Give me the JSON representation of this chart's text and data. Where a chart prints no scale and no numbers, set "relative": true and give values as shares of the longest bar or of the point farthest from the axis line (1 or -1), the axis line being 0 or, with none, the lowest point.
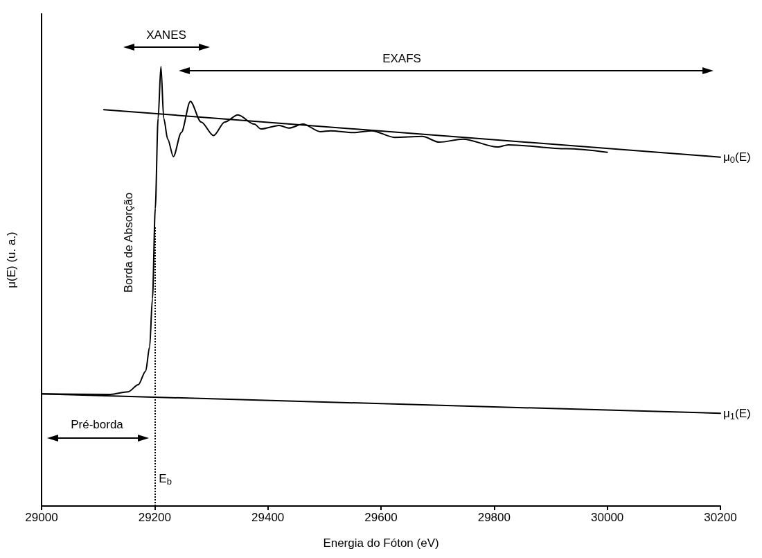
{
  "chart_data": {
    "type": "line",
    "relative": true,
    "xlabel": "Energia do Fóton (eV)",
    "ylabel": "μ(E) (u. a.)",
    "xlim": [
      29000,
      30200
    ],
    "xticks": [
      29000,
      29200,
      29400,
      29600,
      29800,
      30000,
      30200
    ],
    "grid": false,
    "legend": false,
    "marker": "none",
    "line_style": "solid",
    "series": [
      {
        "color": "#000000",
        "x": [
          29000,
          29122,
          29153,
          29171,
          29184,
          29191,
          29196,
          29201,
          29206,
          29211,
          29216,
          29223,
          29233,
          29247,
          29263,
          29282,
          29304,
          29324,
          29347,
          29376,
          29388,
          29420,
          29437,
          29462,
          29493,
          29511,
          29551,
          29584,
          29624,
          29673,
          29703,
          29745,
          29806,
          29825,
          29928,
          30000
        ],
        "values": [
          0.255,
          0.254,
          0.26,
          0.276,
          0.307,
          0.362,
          0.472,
          0.677,
          0.882,
          1.0,
          0.882,
          0.835,
          0.795,
          0.85,
          0.921,
          0.874,
          0.843,
          0.874,
          0.89,
          0.869,
          0.858,
          0.866,
          0.86,
          0.869,
          0.852,
          0.854,
          0.85,
          0.854,
          0.839,
          0.841,
          0.828,
          0.835,
          0.817,
          0.822,
          0.813,
          0.805
        ]
      },
      {
        "name": "μ$_{0}$(E)",
        "color": "#000000",
        "x": [
          29110,
          30200
        ],
        "values": [
          0.902,
          0.794
        ]
      },
      {
        "name": "μ$_{1}$(E)",
        "color": "#000000",
        "x": [
          29000,
          30200
        ],
        "values": [
          0.255,
          0.211
        ]
      }
    ],
    "ref_lines": [
      {
        "axis": "x",
        "value": 29200,
        "label": "E$_{b}$",
        "color": "#000000",
        "line_style": "dotted"
      }
    ],
    "annotations": [
      "XANES",
      "EXAFS",
      "Borda de Absorção",
      "Pré-borda"
    ]
  }
}
